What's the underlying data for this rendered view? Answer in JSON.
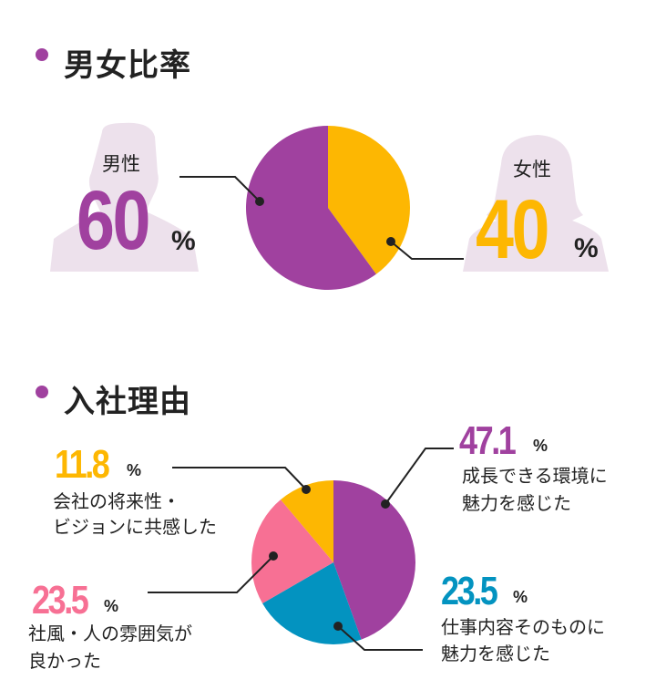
{
  "colors": {
    "purple": "#a0419f",
    "yellow": "#fdb702",
    "pink": "#f77094",
    "blue": "#0393c0",
    "silhouette": "#ede1ec",
    "line": "#222222"
  },
  "section1": {
    "title": "男女比率"
  },
  "section2": {
    "title": "入社理由"
  },
  "chart_data": [
    {
      "type": "pie",
      "slices": [
        {
          "name": "女性",
          "value": 40,
          "label": "40",
          "unit": "%",
          "color": "#fdb702"
        },
        {
          "name": "男性",
          "value": 60,
          "label": "60",
          "unit": "%",
          "color": "#a0419f"
        }
      ]
    },
    {
      "type": "pie",
      "slices": [
        {
          "value": 47.1,
          "label": "47.1",
          "unit": "%",
          "color": "#a0419f",
          "lines": [
            "成長できる環境に",
            "魅力を感じた"
          ]
        },
        {
          "value": 23.5,
          "label": "23.5",
          "unit": "%",
          "color": "#0393c0",
          "lines": [
            "仕事内容そのものに",
            "魅力を感じた"
          ]
        },
        {
          "value": 23.5,
          "label": "23.5",
          "unit": "%",
          "color": "#f77094",
          "lines": [
            "社風・人の雰囲気が",
            "良かった"
          ]
        },
        {
          "value": 11.8,
          "label": "11.8",
          "unit": "%",
          "color": "#fdb702",
          "lines": [
            "会社の将来性・",
            "ビジョンに共感した"
          ]
        }
      ]
    }
  ]
}
